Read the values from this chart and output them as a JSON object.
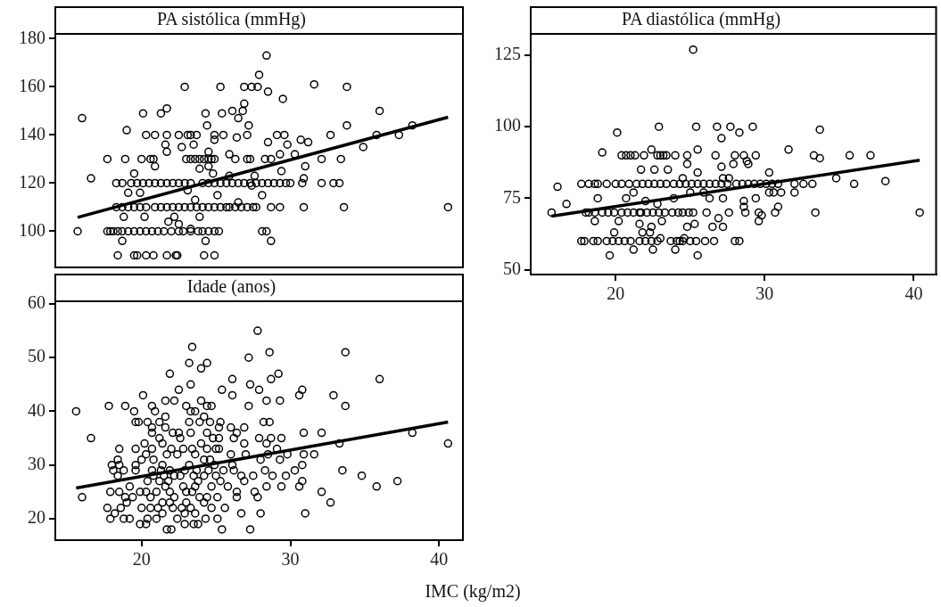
{
  "chart_data": [
    {
      "type": "scatter",
      "title": "PA sistólica (mmHg)",
      "marker": "circle",
      "tick_labels": "y",
      "xlim": [
        14.2,
        41.6
      ],
      "ylim": [
        85,
        182
      ],
      "yticks": [
        100,
        120,
        140,
        160,
        180
      ],
      "series": [
        {
          "color": "#000000",
          "x": [
            15.7,
            16.0,
            16.6,
            17.7,
            18.9,
            19.0,
            18.7,
            20.1,
            21.3,
            21.7,
            20.3,
            20.9,
            21.7,
            22.5,
            23.1,
            23.3,
            22.9,
            25.3,
            26.9,
            27.4,
            27.8,
            28.4,
            27.9,
            28.5,
            29.5,
            31.6,
            33.8,
            36.0,
            38.2,
            37.3,
            35.8,
            34.9,
            33.8,
            32.7,
            33.4,
            32.1,
            32.1,
            32.9,
            33.3,
            33.6,
            40.6,
            30.9,
            29.3,
            28.7,
            28.1,
            28.4,
            28.7,
            24.3,
            26.1,
            26.9,
            26.8,
            26.5,
            25.4,
            24.4,
            27.2,
            28.5,
            29.8,
            29.1,
            29.6,
            30.7,
            31.2,
            30.3,
            31.0,
            30.9,
            29.4,
            28.3,
            28.7,
            29.3,
            28.1,
            27.1,
            27.3,
            26.3,
            27.1,
            26.4,
            25.9,
            22.7,
            21.6,
            21.7,
            20.9,
            20.0,
            20.6,
            20.8,
            19.5,
            19.1,
            19.9,
            20.2,
            18.8,
            22.2,
            21.8,
            23.9,
            24.3,
            25.1,
            24.8,
            24.5,
            23.9,
            23.6,
            23.1,
            23.7,
            24.9,
            25.5,
            24.9,
            23.5,
            24.5,
            25.9,
            27.6,
            27.4,
            26.5,
            27.5,
            25.7,
            22.5,
            23.3
          ],
          "values": [
            100,
            147,
            122,
            130,
            130,
            142,
            96,
            149,
            149,
            151,
            140,
            140,
            140,
            140,
            140,
            140,
            160,
            160,
            160,
            160,
            160,
            173,
            165,
            158,
            155,
            161,
            160,
            150,
            144,
            140,
            140,
            135,
            144,
            140,
            130,
            130,
            120,
            120,
            120,
            110,
            110,
            110,
            110,
            110,
            100,
            100,
            96,
            149,
            150,
            153,
            150,
            147,
            149,
            144,
            144,
            137,
            136,
            140,
            140,
            138,
            137,
            132,
            127,
            122,
            125,
            130,
            130,
            132,
            115,
            130,
            130,
            130,
            140,
            139,
            132,
            135,
            136,
            133,
            127,
            130,
            130,
            130,
            124,
            116,
            116,
            106,
            106,
            106,
            104,
            106,
            96,
            115,
            124,
            133,
            126,
            113,
            117,
            140,
            140,
            140,
            138,
            136,
            127,
            123,
            123,
            119,
            112,
            110,
            110,
            103,
            101
          ]
        },
        {
          "color": "#000000",
          "x": [
            17.7,
            17.9,
            18.1,
            18.4,
            18.7,
            19.1,
            19.5,
            19.9,
            20.3,
            20.7,
            21.1,
            21.5,
            22.0,
            22.5,
            22.8,
            23.3,
            23.8,
            24.1,
            24.5,
            24.9,
            25.2
          ],
          "values": [
            100,
            100,
            100,
            100,
            100,
            100,
            100,
            100,
            100,
            100,
            100,
            100,
            100,
            100,
            100,
            100,
            100,
            100,
            100,
            100,
            100
          ]
        },
        {
          "color": "#000000",
          "x": [
            18.3,
            18.7,
            19.1,
            19.5,
            19.9,
            20.3,
            20.9,
            21.3,
            21.7,
            22.1,
            22.5,
            22.9,
            23.3,
            23.7,
            24.1,
            24.5,
            24.9,
            25.3,
            25.9,
            26.3,
            26.7,
            27.1,
            27.7
          ],
          "values": [
            110,
            110,
            110,
            110,
            110,
            110,
            110,
            110,
            110,
            110,
            110,
            110,
            110,
            110,
            110,
            110,
            110,
            110,
            110,
            110,
            110,
            110,
            110
          ]
        },
        {
          "color": "#000000",
          "x": [
            18.3,
            18.7,
            19.3,
            19.7,
            20.1,
            20.5,
            20.9,
            21.3,
            21.7,
            22.1,
            22.5,
            22.9,
            23.3,
            23.7,
            24.1,
            24.5,
            24.9,
            25.3,
            25.7,
            26.1,
            26.5,
            26.9,
            27.3,
            27.7,
            28.1,
            28.5,
            28.9,
            29.3,
            29.7,
            30.0,
            30.8
          ],
          "values": [
            120,
            120,
            120,
            120,
            120,
            120,
            120,
            120,
            120,
            120,
            120,
            120,
            120,
            null,
            120,
            120,
            120,
            120,
            120,
            120,
            120,
            120,
            120,
            120,
            120,
            120,
            120,
            120,
            120,
            120,
            120
          ]
        },
        {
          "color": "#000000",
          "x": [
            23.0,
            23.3,
            23.6,
            23.9,
            24.2,
            24.5,
            24.7,
            24.9
          ],
          "values": [
            130,
            130,
            130,
            130,
            130,
            130,
            130,
            130
          ]
        },
        {
          "color": "#000000",
          "x": [
            18.4,
            19.5,
            19.7,
            20.3,
            20.8,
            21.7,
            22.3,
            22.4,
            24.2,
            24.9
          ],
          "values": [
            90,
            90,
            90,
            90,
            90,
            90,
            90,
            90,
            90,
            90
          ]
        },
        {
          "type": "line",
          "marker": "none",
          "color": "#000000",
          "x": [
            15.7,
            40.6
          ],
          "values": [
            105.8,
            147.4
          ]
        }
      ]
    },
    {
      "type": "scatter",
      "title": "PA diastólica (mmHg)",
      "marker": "circle",
      "xlim": [
        14.3,
        41.5
      ],
      "ylim": [
        48.3,
        132.5
      ],
      "xticks": [
        20,
        30,
        40
      ],
      "yticks": [
        50,
        75,
        100,
        125
      ],
      "series": [
        {
          "color": "#000000",
          "x": [
            15.7,
            16.1,
            16.7,
            19.1,
            20.1,
            22.9,
            25.4,
            25.2,
            26.8,
            27.7,
            28.3,
            29.2,
            27.1,
            25.5,
            31.6,
            33.7,
            33.3,
            33.7,
            35.7,
            37.1,
            34.8,
            36.0,
            38.1,
            40.4,
            33.4,
            32.0,
            32.0,
            32.6,
            33.2,
            30.3,
            30.3,
            30.6,
            31.1,
            30.9,
            30.7,
            29.6,
            29.8,
            29.6,
            29.4,
            28.6,
            28.7,
            28.6,
            27.6,
            27.2,
            26.9,
            26.5,
            26.1,
            26.6,
            26.0,
            28.0,
            28.3,
            25.5,
            24.0,
            22.5,
            21.2,
            19.6,
            25.3,
            24.8,
            25.5,
            24.8,
            27.1,
            27.9,
            28.9,
            28.8,
            29.4,
            28.6,
            28.0,
            26.7,
            24.8,
            24.0,
            21.7,
            22.6,
            23.5,
            22.4,
            18.8,
            18.6,
            19.9,
            20.7,
            21.2,
            21.6,
            21.6,
            21.8,
            22.3,
            22.4,
            23.1,
            22.0,
            22.8,
            23.9,
            24.5,
            25.0,
            25.9,
            26.3,
            27.2,
            27.2,
            27.6,
            20.2,
            23.0,
            24.6
          ],
          "values": [
            70,
            79,
            73,
            91,
            98,
            100,
            100,
            127,
            100,
            100,
            98,
            100,
            96,
            92,
            92,
            99,
            90,
            89,
            90,
            90,
            82,
            80,
            81,
            70,
            70,
            77,
            80,
            80,
            80,
            84,
            77,
            77,
            77,
            72,
            70,
            70,
            69,
            67,
            75,
            72,
            70,
            74,
            70,
            65,
            68,
            65,
            70,
            60,
            60,
            60,
            60,
            55,
            57,
            57,
            57,
            55,
            66,
            65,
            84,
            87,
            86,
            87,
            87,
            88,
            90,
            90,
            90,
            90,
            90,
            90,
            85,
            85,
            85,
            92,
            75,
            67,
            63,
            75,
            77,
            70,
            66,
            63,
            63,
            65,
            67,
            74,
            73,
            75,
            82,
            77,
            77,
            75,
            75,
            82,
            82,
            67,
            61,
            61
          ]
        },
        {
          "color": "#000000",
          "x": [
            17.7,
            18.2,
            18.6,
            18.8,
            19.4,
            20.0,
            20.4,
            20.9,
            21.4,
            21.8,
            22.2,
            22.6,
            23.0,
            23.4,
            23.9,
            24.3,
            24.7,
            25.1,
            25.5,
            25.9,
            26.3,
            26.7,
            27.1,
            27.5,
            28.1,
            28.5,
            28.9,
            29.3,
            29.7,
            30.1,
            30.5,
            30.9
          ],
          "values": [
            80,
            80,
            80,
            80,
            80,
            80,
            80,
            80,
            80,
            80,
            80,
            80,
            80,
            80,
            80,
            80,
            80,
            80,
            80,
            80,
            80,
            80,
            80,
            80,
            80,
            80,
            80,
            80,
            80,
            80,
            80,
            80
          ]
        },
        {
          "color": "#000000",
          "x": [
            18.0,
            18.2,
            18.6,
            19.1,
            19.5,
            19.9,
            20.4,
            20.8,
            21.2,
            21.7,
            22.1,
            22.5,
            22.9,
            23.3,
            23.8,
            24.2,
            24.5,
            24.9,
            25.2
          ],
          "values": [
            70,
            70,
            70,
            70,
            70,
            70,
            70,
            70,
            70,
            70,
            70,
            70,
            70,
            70,
            70,
            70,
            70,
            70,
            70
          ]
        },
        {
          "color": "#000000",
          "x": [
            17.7,
            17.9,
            18.5,
            18.8,
            19.4,
            19.8,
            20.2,
            20.6,
            21.0,
            21.6,
            22.0,
            22.4,
            22.8,
            23.7,
            24.1,
            24.3,
            24.5,
            25.0,
            25.4
          ],
          "values": [
            60,
            60,
            60,
            60,
            60,
            60,
            60,
            60,
            60,
            60,
            60,
            60,
            60,
            60,
            60,
            60,
            60,
            60,
            60
          ]
        },
        {
          "color": "#000000",
          "x": [
            20.4,
            20.7,
            21.0,
            21.3,
            21.9,
            22.8,
            23.0,
            23.2,
            23.4
          ],
          "values": [
            90,
            90,
            90,
            90,
            90,
            90,
            90,
            90,
            90
          ]
        },
        {
          "type": "line",
          "marker": "none",
          "color": "#000000",
          "x": [
            15.7,
            40.4
          ],
          "values": [
            68.7,
            88.3
          ]
        }
      ]
    },
    {
      "type": "scatter",
      "title": "Idade (anos)",
      "xlabel": "IMC (kg/m2)",
      "marker": "circle",
      "xlim": [
        14.2,
        41.6
      ],
      "ylim": [
        16,
        60.5
      ],
      "xticks": [
        20,
        30,
        40
      ],
      "yticks": [
        20,
        30,
        40,
        50,
        60
      ],
      "series": [
        {
          "color": "#000000",
          "x": [
            15.6,
            16.0,
            16.6,
            17.8,
            18.9,
            19.5,
            20.1,
            20.7,
            20.9,
            21.6,
            22.2,
            22.5,
            21.9,
            23.4,
            23.2,
            24.4,
            24.0,
            23.3,
            23.0,
            24.0,
            24.4,
            24.7,
            25.4,
            26.1,
            26.1,
            27.2,
            27.8,
            28.6,
            28.7,
            29.2,
            29.3,
            28.4,
            27.9,
            27.3,
            27.2,
            30.6,
            30.8,
            32.9,
            33.7,
            33.7,
            36.0,
            38.2,
            40.6,
            33.3,
            33.5,
            34.8,
            35.8,
            37.2,
            32.1,
            31.6,
            30.9,
            30.9,
            30.8,
            30.3,
            30.8,
            30.6,
            32.1,
            32.7,
            31.0,
            29.7,
            29.4,
            29.8,
            29.1,
            29.4,
            29.3,
            28.8,
            28.3,
            28.4,
            28.5,
            28.4,
            28.7,
            28.6,
            28.2,
            27.9,
            28.0,
            27.5,
            27.6,
            27.8,
            28.0,
            27.3,
            26.7,
            25.4,
            25.6,
            25.1,
            25.1,
            26.4,
            26.4,
            26.9,
            26.7,
            27.0,
            26.9,
            26.9,
            26.4,
            26.0,
            26.2,
            26.0,
            26.1,
            26.2,
            25.8,
            25.3,
            25.5,
            25.2,
            25.2,
            25.2,
            25.3,
            24.6,
            24.2,
            23.9,
            23.6,
            23.3,
            23.2,
            23.3,
            22.5,
            22.6,
            22.1,
            21.6,
            21.6,
            21.2,
            20.4,
            19.6,
            19.8,
            20.7,
            20.7,
            21.2,
            21.4,
            20.2,
            19.6,
            18.5,
            18.4,
            18.0,
            18.1,
            18.5,
            18.8,
            18.4,
            17.9,
            18.5,
            17.7,
            17.9,
            18.2,
            18.8,
            19.2,
            18.6,
            18.9,
            19.0,
            19.2,
            19.4,
            19.9,
            20.3,
            20.0,
            19.9,
            19.6,
            19.6,
            20.0,
            20.3,
            20.7,
            20.8,
            20.7,
            20.4,
            20.3,
            20.6,
            20.6,
            20.4,
            21.0,
            21.4,
            21.4,
            21.0,
            21.2,
            21.3,
            21.4,
            21.7,
            22.0,
            22.4,
            22.8,
            23.4,
            23.6,
            23.2,
            22.9,
            22.6,
            22.2,
            21.9,
            21.8,
            21.6,
            21.9,
            22.2,
            21.9,
            22.1,
            21.7,
            22.0,
            22.4,
            22.9,
            22.9,
            22.7,
            23.0,
            23.0,
            22.8,
            23.6,
            23.8,
            24.2,
            24.5,
            24.6,
            24.2,
            24.4,
            24.0,
            24.4,
            24.8,
            25.0,
            24.9,
            25.0,
            24.7,
            24.4,
            24.2,
            24.7,
            24.3,
            23.5,
            23.8,
            23.6,
            23.3,
            23.9,
            23.4,
            23.5,
            23.7,
            21.1,
            20.8,
            21.5
          ],
          "values": [
            40,
            24,
            35,
            41,
            41,
            40,
            43,
            41,
            40,
            42,
            42,
            44,
            47,
            52,
            49,
            49,
            48,
            45,
            41,
            42,
            41,
            41,
            44,
            46,
            43,
            50,
            55,
            51,
            46,
            47,
            42,
            42,
            44,
            45,
            41,
            43,
            44,
            43,
            51,
            41,
            46,
            36,
            34,
            34,
            29,
            28,
            26,
            27,
            36,
            32,
            36,
            32,
            30,
            29,
            27,
            26,
            25,
            23,
            21,
            28,
            26,
            32,
            33,
            35,
            31,
            28,
            29,
            26,
            32,
            34,
            35,
            38,
            38,
            35,
            31,
            28,
            25,
            24,
            21,
            18,
            21,
            18,
            22,
            24,
            20,
            24,
            25,
            27,
            28,
            32,
            34,
            37,
            36,
            37,
            35,
            32,
            30,
            29,
            26,
            27,
            29,
            33,
            35,
            37,
            38,
            38,
            39,
            38,
            40,
            40,
            38,
            36,
            36,
            35,
            36,
            39,
            37,
            38,
            38,
            38,
            38,
            37,
            36,
            35,
            34,
            34,
            33,
            33,
            31,
            30,
            29,
            30,
            29,
            28,
            25,
            25,
            22,
            20,
            21,
            20,
            20,
            22,
            24,
            23,
            26,
            24,
            19,
            19,
            22,
            25,
            29,
            30,
            31,
            32,
            33,
            31,
            29,
            27,
            25,
            24,
            22,
            20,
            20,
            21,
            23,
            25,
            27,
            29,
            30,
            32,
            33,
            32,
            33,
            33,
            32,
            30,
            29,
            28,
            28,
            29,
            27,
            26,
            25,
            24,
            23,
            22,
            18,
            18,
            20,
            19,
            21,
            22,
            23,
            25,
            26,
            26,
            27,
            28,
            29,
            31,
            31,
            33,
            34,
            36,
            35,
            33,
            30,
            28,
            26,
            24,
            23,
            22,
            20,
            19,
            19,
            21,
            22,
            24,
            25,
            28,
            29,
            22,
            28,
            28
          ]
        },
        {
          "type": "line",
          "marker": "none",
          "color": "#000000",
          "x": [
            15.6,
            40.6
          ],
          "values": [
            25.7,
            38.0
          ]
        }
      ]
    }
  ]
}
